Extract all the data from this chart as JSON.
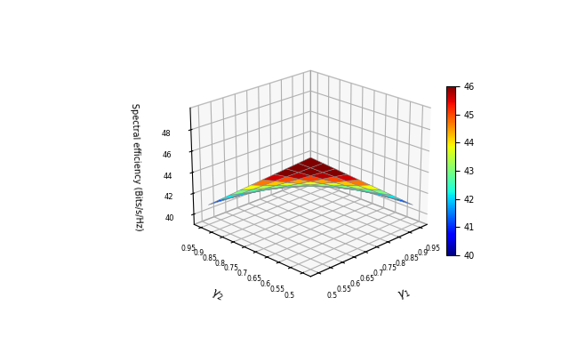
{
  "gamma1_range": [
    0.5,
    0.95
  ],
  "gamma2_range": [
    0.5,
    0.95
  ],
  "n_points": 10,
  "xlabel": "$\\gamma_1$",
  "ylabel": "$\\gamma_2$",
  "zlabel": "Spectral efficiency (Bits/s/Hz)",
  "colorbar_ticks": [
    40,
    41,
    42,
    43,
    44,
    45,
    46
  ],
  "zlim": [
    39,
    50
  ],
  "cmap_vmin": 40,
  "cmap_vmax": 46,
  "elev": 22,
  "azim": 225,
  "tick_vals": [
    0.5,
    0.55,
    0.6,
    0.65,
    0.7,
    0.75,
    0.8,
    0.85,
    0.9,
    0.95
  ]
}
